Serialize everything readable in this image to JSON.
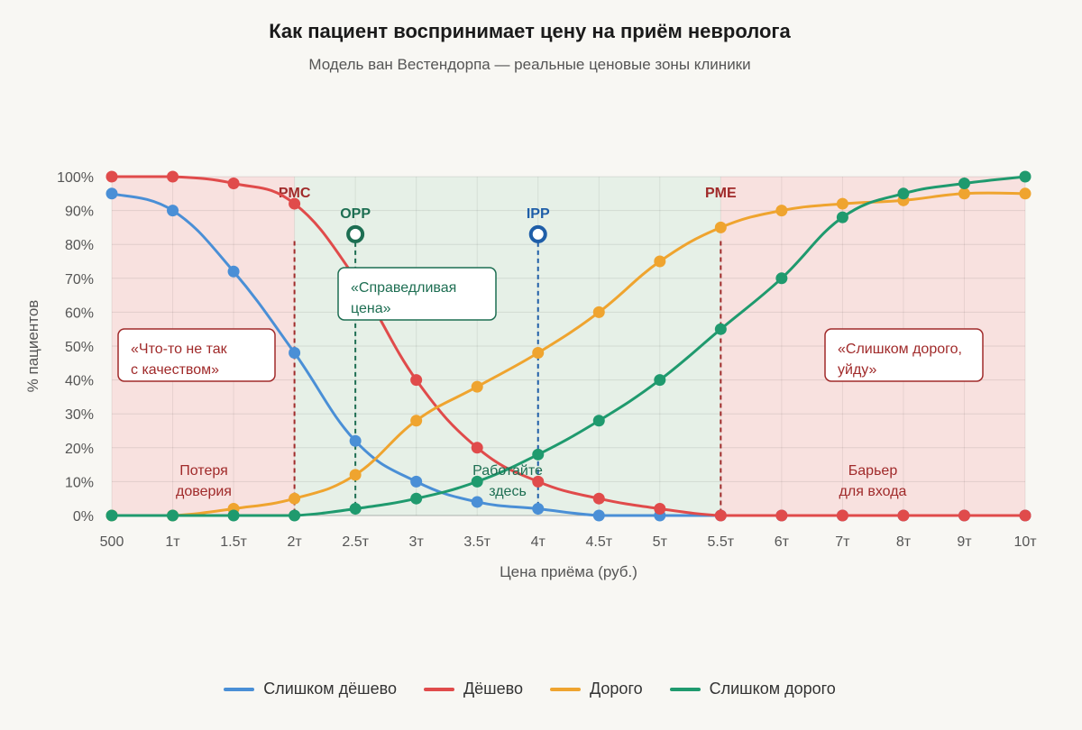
{
  "header": {
    "title": "Как пациент воспринимает цену на приём невролога",
    "subtitle": "Модель ван Вестендорпа — реальные ценовые зоны клиники"
  },
  "colors": {
    "too_cheap": "#4a8fd6",
    "cheap": "#e04b4b",
    "expensive": "#efa42f",
    "too_expensive": "#1f9a6e",
    "red_zone_fill": "#f8e1df",
    "green_zone_fill": "#e6f0e7",
    "red_text": "#a02a2a",
    "green_text": "#1d6e52",
    "blue_text": "#1f5ea8"
  },
  "chart_data": {
    "type": "line",
    "xlabel": "Цена приёма (руб.)",
    "ylabel": "% пациентов",
    "categories": [
      "500",
      "1т",
      "1.5т",
      "2т",
      "2.5т",
      "3т",
      "3.5т",
      "4т",
      "4.5т",
      "5т",
      "5.5т",
      "6т",
      "7т",
      "8т",
      "9т",
      "10т"
    ],
    "y_ticks": [
      "0%",
      "10%",
      "20%",
      "30%",
      "40%",
      "50%",
      "60%",
      "70%",
      "80%",
      "90%",
      "100%"
    ],
    "ylim": [
      0,
      100
    ],
    "grid": true,
    "legend_position": "bottom",
    "series": [
      {
        "name": "Слишком дёшево",
        "color_key": "too_cheap",
        "values": [
          95,
          90,
          72,
          48,
          22,
          10,
          4,
          2,
          0,
          0,
          0,
          0,
          0,
          0,
          0,
          0
        ]
      },
      {
        "name": "Дёшево",
        "color_key": "cheap",
        "values": [
          100,
          100,
          98,
          92,
          70,
          40,
          20,
          10,
          5,
          2,
          0,
          0,
          0,
          0,
          0,
          0
        ]
      },
      {
        "name": "Дорого",
        "color_key": "expensive",
        "values": [
          0,
          0,
          2,
          5,
          12,
          28,
          38,
          48,
          60,
          75,
          85,
          90,
          92,
          93,
          95,
          95
        ]
      },
      {
        "name": "Слишком дорого",
        "color_key": "too_expensive",
        "values": [
          0,
          0,
          0,
          0,
          2,
          5,
          10,
          18,
          28,
          40,
          55,
          70,
          88,
          95,
          98,
          100
        ]
      }
    ],
    "zones": [
      {
        "from": 0,
        "to": 3,
        "kind": "red"
      },
      {
        "from": 3,
        "to": 10,
        "kind": "green"
      },
      {
        "from": 10,
        "to": 15,
        "kind": "red"
      }
    ],
    "markers": [
      {
        "label": "PMC",
        "x_index": 3,
        "kind": "red",
        "circle": false
      },
      {
        "label": "OPP",
        "x_index": 4,
        "kind": "green",
        "circle": true,
        "y": 83
      },
      {
        "label": "IPP",
        "x_index": 7,
        "kind": "blue",
        "circle": true,
        "y": 83
      },
      {
        "label": "PME",
        "x_index": 10,
        "kind": "red",
        "circle": false
      }
    ],
    "annotations": {
      "left_box": [
        "«Что-то не так",
        "с качеством»"
      ],
      "right_box": [
        "«Слишком дорого,",
        "уйду»"
      ],
      "center_box": [
        "«Справедливая",
        "цена»"
      ],
      "left_zone": [
        "Потеря",
        "доверия"
      ],
      "center_zone": [
        "Работайте",
        "здесь"
      ],
      "right_zone": [
        "Барьер",
        "для входа"
      ]
    }
  }
}
